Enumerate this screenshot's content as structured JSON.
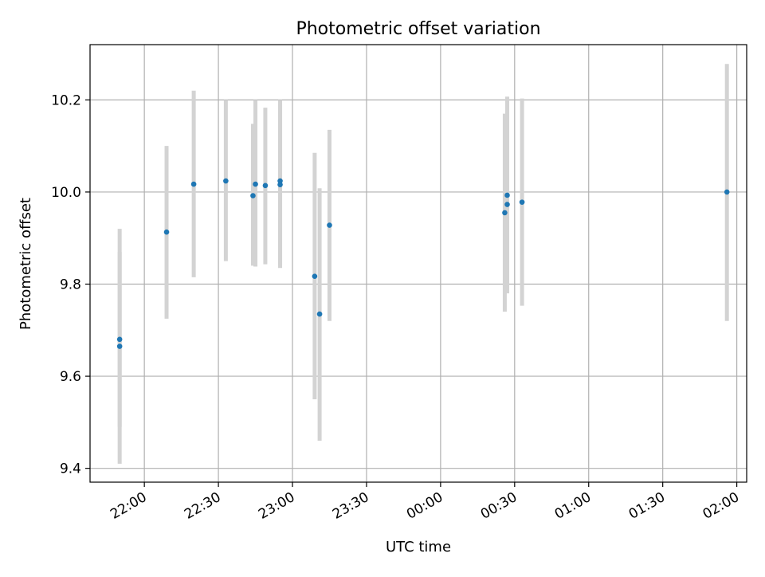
{
  "chart_data": {
    "type": "scatter",
    "title": "Photometric offset variation",
    "xlabel": "UTC time",
    "ylabel": "Photometric offset",
    "x_axis": {
      "kind": "time",
      "range": [
        "21:38",
        "02:04"
      ],
      "ticks": [
        "22:00",
        "22:30",
        "23:00",
        "23:30",
        "00:00",
        "00:30",
        "01:00",
        "01:30",
        "02:00"
      ],
      "tick_label_rotation_deg": 30
    },
    "y_axis": {
      "range": [
        9.37,
        10.32
      ],
      "ticks": [
        9.4,
        9.6,
        9.8,
        10.0,
        10.2
      ]
    },
    "grid": true,
    "legend": "none",
    "colors": {
      "marker": "#1f77b4",
      "errorbar": "#d3d3d3",
      "grid": "#b0b0b0"
    },
    "points": [
      {
        "x": "21:50",
        "y": 9.68,
        "ylow": 9.49,
        "yhigh": 9.87
      },
      {
        "x": "21:50",
        "y": 9.665,
        "ylow": 9.41,
        "yhigh": 9.92
      },
      {
        "x": "22:09",
        "y": 9.913,
        "ylow": 9.725,
        "yhigh": 10.1
      },
      {
        "x": "22:20",
        "y": 10.017,
        "ylow": 9.815,
        "yhigh": 10.22
      },
      {
        "x": "22:33",
        "y": 10.024,
        "ylow": 9.85,
        "yhigh": 10.2
      },
      {
        "x": "22:44",
        "y": 9.992,
        "ylow": 9.84,
        "yhigh": 10.148
      },
      {
        "x": "22:45",
        "y": 10.017,
        "ylow": 9.838,
        "yhigh": 10.2
      },
      {
        "x": "22:49",
        "y": 10.014,
        "ylow": 9.843,
        "yhigh": 10.183
      },
      {
        "x": "22:55",
        "y": 10.024,
        "ylow": 9.835,
        "yhigh": 10.2
      },
      {
        "x": "22:55",
        "y": 10.016,
        "ylow": 9.84,
        "yhigh": 10.19
      },
      {
        "x": "23:09",
        "y": 9.817,
        "ylow": 9.55,
        "yhigh": 10.085
      },
      {
        "x": "23:11",
        "y": 9.735,
        "ylow": 9.46,
        "yhigh": 10.008
      },
      {
        "x": "23:15",
        "y": 9.928,
        "ylow": 9.72,
        "yhigh": 10.135
      },
      {
        "x": "00:26",
        "y": 9.955,
        "ylow": 9.74,
        "yhigh": 10.17
      },
      {
        "x": "00:27",
        "y": 9.993,
        "ylow": 9.78,
        "yhigh": 10.207
      },
      {
        "x": "00:27",
        "y": 9.973,
        "ylow": 9.815,
        "yhigh": 10.13
      },
      {
        "x": "00:33",
        "y": 9.978,
        "ylow": 9.753,
        "yhigh": 10.203
      },
      {
        "x": "01:56",
        "y": 10.0,
        "ylow": 9.72,
        "yhigh": 10.278
      }
    ]
  }
}
